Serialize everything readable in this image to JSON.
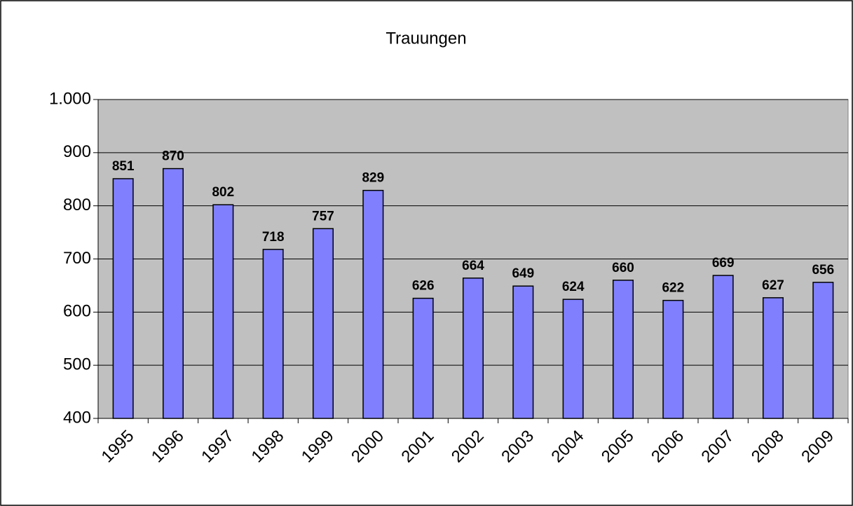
{
  "chart_data": {
    "type": "bar",
    "title": "Trauungen",
    "categories": [
      "1995",
      "1996",
      "1997",
      "1998",
      "1999",
      "2000",
      "2001",
      "2002",
      "2003",
      "2004",
      "2005",
      "2006",
      "2007",
      "2008",
      "2009"
    ],
    "values": [
      851,
      870,
      802,
      718,
      757,
      829,
      626,
      664,
      649,
      624,
      660,
      622,
      669,
      627,
      656
    ],
    "color": "#8080ff",
    "plot_background": "#c0c0c0",
    "ylim": [
      400,
      1000
    ],
    "yticks": [
      400,
      500,
      600,
      700,
      800,
      900,
      {
        "value": 1000,
        "label": "1.000"
      }
    ],
    "grid": true
  }
}
